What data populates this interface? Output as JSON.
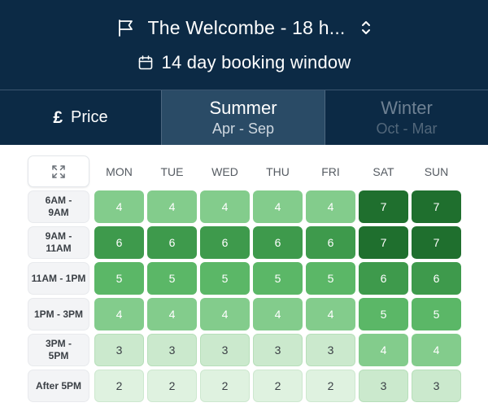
{
  "header": {
    "course_name": "The Welcombe - 18 h...",
    "booking_window": "14 day booking window"
  },
  "tabs": {
    "price": {
      "symbol": "£",
      "label": "Price"
    },
    "summer": {
      "title": "Summer",
      "subtitle": "Apr - Sep",
      "selected": true
    },
    "winter": {
      "title": "Winter",
      "subtitle": "Oct - Mar",
      "selected": false
    }
  },
  "grid": {
    "days": [
      "MON",
      "TUE",
      "WED",
      "THU",
      "FRI",
      "SAT",
      "SUN"
    ],
    "rows": [
      {
        "label_lines": [
          "6AM -",
          "9AM"
        ],
        "values": [
          4,
          4,
          4,
          4,
          4,
          7,
          7
        ]
      },
      {
        "label_lines": [
          "9AM -",
          "11AM"
        ],
        "values": [
          6,
          6,
          6,
          6,
          6,
          7,
          7
        ]
      },
      {
        "label_lines": [
          "11AM - 1PM"
        ],
        "values": [
          5,
          5,
          5,
          5,
          5,
          6,
          6
        ]
      },
      {
        "label_lines": [
          "1PM - 3PM"
        ],
        "values": [
          4,
          4,
          4,
          4,
          4,
          5,
          5
        ]
      },
      {
        "label_lines": [
          "3PM -",
          "5PM"
        ],
        "values": [
          3,
          3,
          3,
          3,
          3,
          4,
          4
        ]
      },
      {
        "label_lines": [
          "After 5PM"
        ],
        "values": [
          2,
          2,
          2,
          2,
          2,
          3,
          3
        ]
      }
    ]
  },
  "colors": {
    "header_bg": "#0c2a45",
    "selected_tab_bg": "#2a4b66",
    "level_2": "#dff2e0",
    "level_3": "#cbe9cd",
    "level_4": "#83cc8c",
    "level_5": "#5bb767",
    "level_6": "#3e9a4c",
    "level_7": "#1f6f2e"
  },
  "icons": {
    "course": "flag-icon",
    "course_select": "chevron-up-down-icon",
    "booking_window": "calendar-icon",
    "expand": "expand-icon"
  }
}
